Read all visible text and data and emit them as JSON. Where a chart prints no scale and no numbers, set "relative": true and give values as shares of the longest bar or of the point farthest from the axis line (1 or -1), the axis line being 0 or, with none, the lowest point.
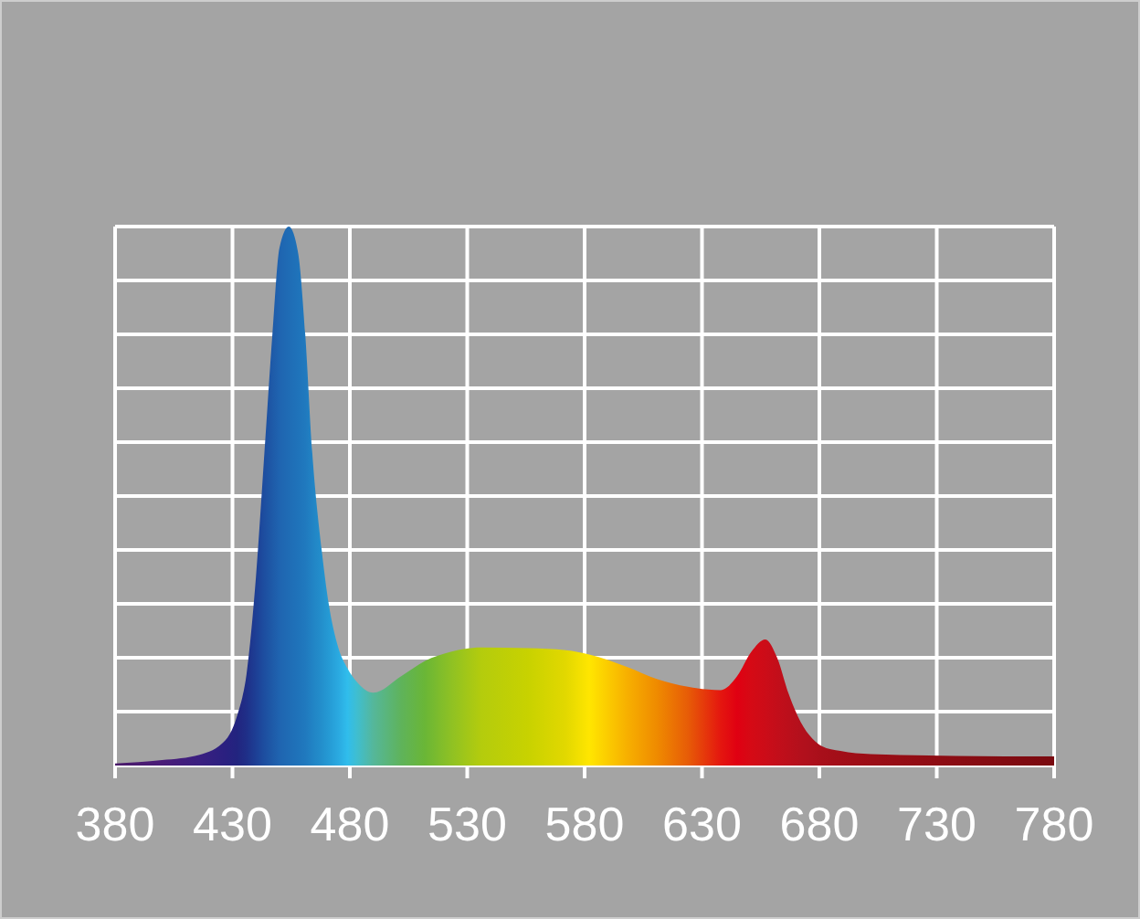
{
  "chart_data": {
    "type": "area",
    "relative": true,
    "x": [
      380,
      400,
      416,
      427,
      432,
      436,
      440,
      443.6,
      447,
      450,
      454,
      458,
      461,
      464,
      468,
      471,
      475,
      479,
      483,
      490,
      502,
      512,
      523,
      536,
      556,
      572,
      582,
      598,
      611,
      624,
      638,
      645,
      651,
      657,
      662,
      667,
      672,
      677,
      681,
      689,
      702,
      738,
      780
    ],
    "values": [
      0.004,
      0.01,
      0.02,
      0.047,
      0.093,
      0.17,
      0.35,
      0.58,
      0.8,
      0.96,
      1,
      0.95,
      0.8,
      0.58,
      0.4,
      0.3,
      0.22,
      0.18,
      0.155,
      0.135,
      0.166,
      0.194,
      0.211,
      0.219,
      0.218,
      0.214,
      0.206,
      0.183,
      0.16,
      0.146,
      0.14,
      0.166,
      0.211,
      0.234,
      0.2,
      0.132,
      0.081,
      0.05,
      0.036,
      0.027,
      0.021,
      0.018,
      0.017
    ],
    "colors": [
      "#4a1a6a",
      "#4a1c78",
      "#3a1f80",
      "#2a2080",
      "#22247f",
      "#1f2f88",
      "#1d3f95",
      "#1d4ea0",
      "#1e5aa8",
      "#1f64b0",
      "#1f6cb5",
      "#1f73ba",
      "#2079be",
      "#2183c4",
      "#238fcc",
      "#259ad4",
      "#2aa9e0",
      "#30bdec",
      "#3fbed0",
      "#55b79a",
      "#5fb35a",
      "#6ab636",
      "#8ec124",
      "#b4cc0d",
      "#c8d200",
      "#e2d800",
      "#ffe600",
      "#f7b000",
      "#ef8a00",
      "#e75c07",
      "#e4160f",
      "#e00012",
      "#d50a15",
      "#cc0c18",
      "#c30e1a",
      "#bb0f1b",
      "#b3101c",
      "#ad101c",
      "#a80f1a",
      "#a20e18",
      "#9b0d16",
      "#8a0c13",
      "#7a0a10"
    ],
    "xlim": [
      380,
      780
    ],
    "xticks": [
      380,
      430,
      480,
      530,
      580,
      630,
      680,
      730,
      780
    ],
    "grid": true
  }
}
